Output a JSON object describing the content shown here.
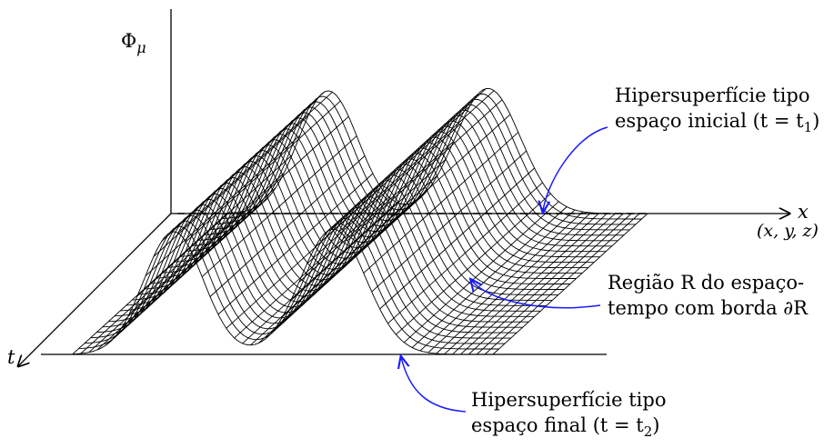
{
  "axes": {
    "phi_label": "Φ",
    "phi_subscript": "μ",
    "x_label": "x",
    "x_sublabel": "(x, y, z)",
    "t_label": "t"
  },
  "annotations": {
    "initial": {
      "line1": "Hipersuperfície tipo",
      "line2": "espaço inicial (t = t",
      "line2_sub": "1",
      "line2_end": ")"
    },
    "region": {
      "line1": "Região R do espaço-",
      "line2": "tempo com borda ∂R"
    },
    "final": {
      "line1": "Hipersuperfície tipo",
      "line2": "espaço final (t = t",
      "line2_sub": "2",
      "line2_end": ")"
    }
  },
  "colors": {
    "arrow": "#1a1aff",
    "ink": "#000000"
  }
}
